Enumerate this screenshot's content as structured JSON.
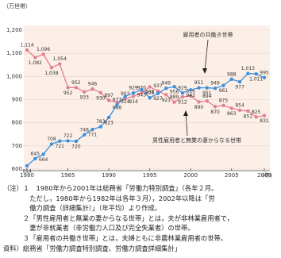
{
  "chart_data": {
    "type": "line",
    "y_unit": "（万世帯）",
    "x_unit": "（年）",
    "x": [
      1980,
      1981,
      1982,
      1983,
      1984,
      1985,
      1986,
      1987,
      1988,
      1989,
      1990,
      1991,
      1992,
      1993,
      1994,
      1995,
      1996,
      1997,
      1998,
      1999,
      2000,
      2001,
      2002,
      2003,
      2004,
      2005,
      2006,
      2007,
      2008,
      2009
    ],
    "xlim": [
      1980,
      2009
    ],
    "xticks": [
      1980,
      1985,
      1990,
      1995,
      2000,
      2005,
      2009
    ],
    "ylim": [
      600,
      1200
    ],
    "yticks": [
      600,
      700,
      800,
      900,
      {
        "value": 1000,
        "label": "1,000"
      },
      {
        "value": 1100,
        "label": "1,100"
      },
      {
        "value": 1200,
        "label": "1,200"
      }
    ],
    "series": [
      {
        "name": "男性雇用者と無業の妻からなる世帯",
        "color": "#e3808f",
        "values": [
          1114,
          1082,
          1096,
          1038,
          1054,
          952,
          952,
          933,
          946,
          930,
          897,
          888,
          903,
          914,
          930,
          955,
          937,
          921,
          889,
          912,
          916,
          890,
          894,
          870,
          875,
          863,
          854,
          851,
          825,
          831
        ],
        "value_labels": [
          "1,114",
          "1,082",
          "1,096",
          "1,038",
          "1,054",
          "952",
          "952",
          "933",
          "946",
          "930",
          "897",
          "888",
          "903",
          "914",
          "930",
          "955",
          "937",
          "921",
          "889",
          "912",
          "916",
          "890",
          "894",
          "870",
          "875",
          "863",
          "854",
          "851",
          "825",
          "831"
        ]
      },
      {
        "name": "雇用者の共働き世帯",
        "color": "#3d8fd8",
        "values": [
          614,
          645,
          664,
          708,
          721,
          722,
          720,
          748,
          771,
          783,
          823,
          877,
          914,
          929,
          943,
          908,
          927,
          949,
          956,
          929,
          942,
          951,
          951,
          949,
          961,
          988,
          977,
          1013,
          1011,
          995
        ],
        "value_labels": [
          "614",
          "645",
          "664",
          "708",
          "721",
          "722",
          "720",
          "748",
          "771",
          "783",
          "823",
          "877",
          "914",
          "929",
          "943",
          "908",
          "927",
          "949",
          "956",
          "929",
          "942",
          "951",
          "951",
          "949",
          "961",
          "988",
          "977",
          "1,013",
          "1,011",
          "995"
        ]
      }
    ]
  },
  "notes": [
    "（注）１　1980年から2001年は総務省「労働力特別調査」（各年２月。",
    "　　　　ただし，1980年から1982年は各年３月），2002年以降は「労",
    "　　　　働力調査（詳細集計）」（年平均）より作成。",
    "　　　２「男性雇用者と無業の妻からなる世帯」とは，夫が非林業雇用者で，",
    "　　　　妻が非就業者（非労働力人口及び完全失業者）の世帯。",
    "　　　３「雇用者の共働き世帯」とは，夫婦ともに非農林業雇用者の世帯。",
    "資料）総務省「労働力調査特別調査、労働力調査詳細集計」"
  ]
}
